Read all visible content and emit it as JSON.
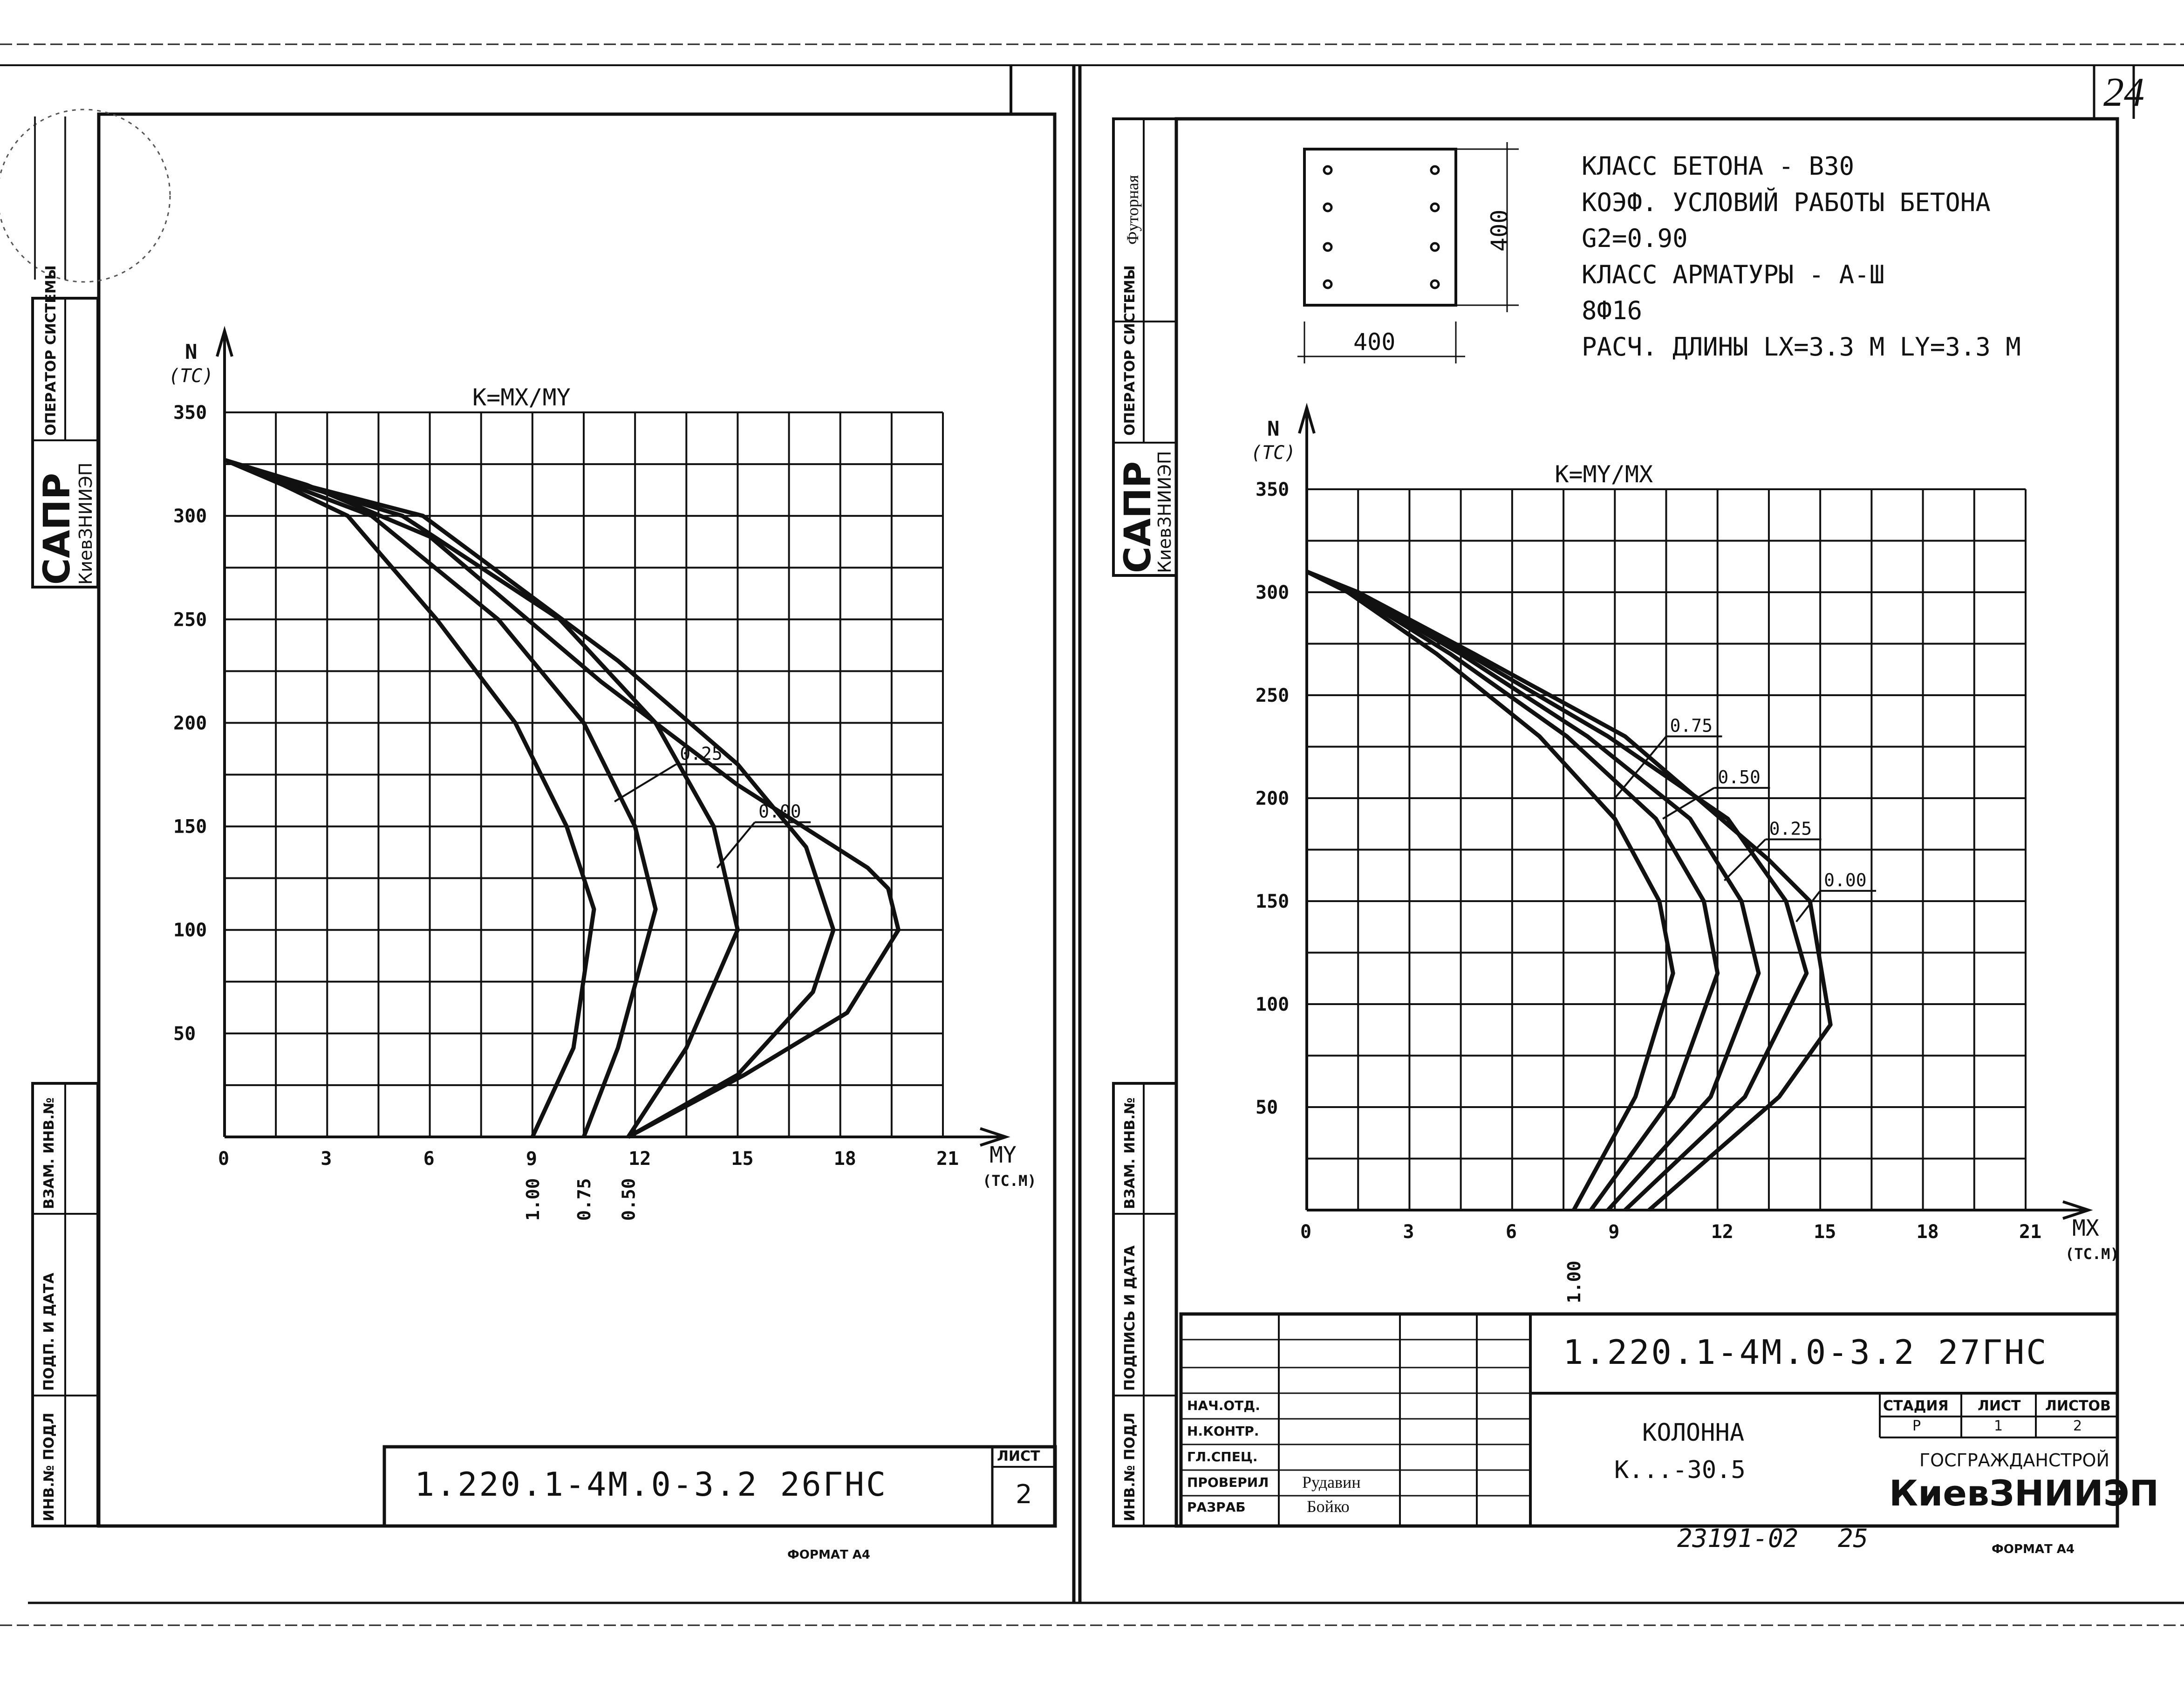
{
  "page_number": "24",
  "sheet_left": {
    "stamp_sapr": "САПР",
    "stamp_org": "КиевЗНИИЭП",
    "side_operator": "ОПЕРАТОР СИСТЕМЫ",
    "side_inv_vzam": "ВЗАМ. ИНВ.№",
    "side_podp": "ПОДП. И ДАТА",
    "side_inv_podl": "ИНВ.№ ПОДЛ",
    "doc_code": "1.220.1-4М.0-3.2 26ГНС",
    "list_label": "ЛИСТ",
    "list_value": "2",
    "format": "ФОРМАТ А4"
  },
  "sheet_right": {
    "stamp_sapr": "САПР",
    "stamp_org": "КиевЗНИИЭП",
    "side_futornaya": "Футорная",
    "side_operator": "ОПЕРАТОР СИСТЕМЫ",
    "side_vzam": "ВЗАМ. ИНВ.№",
    "side_podpis": "ПОДПИСЬ И ДАТА",
    "side_inv_podl": "ИНВ.№ ПОДЛ",
    "section_width": "400",
    "section_height": "400",
    "spec_lines": [
      "КЛАСС БЕТОНА - В30",
      "КОЭФ. УСЛОВИЙ РАБОТЫ БЕТОНА",
      "G2=0.90",
      "КЛАСС АРМАТУРЫ - А-Ш",
      "8Ф16",
      "РАСЧ. ДЛИНЫ  LX=3.3 М  LY=3.3 М"
    ],
    "title_block": {
      "doc_code": "1.220.1-4М.0-3.2 27ГНС",
      "rows": [
        "НАЧ.ОТД.",
        "Н.КОНТР.",
        "ГЛ.СПЕЦ.",
        "ПРОВЕРИЛ",
        "РАЗРАБ"
      ],
      "names": [
        "",
        "",
        "",
        "Рудавин",
        "Бойко"
      ],
      "item_name": "КОЛОННА",
      "item_mark": "К...-30.5",
      "stage_label": "СТАДИЯ",
      "sheet_label": "ЛИСТ",
      "sheets_label": "ЛИСТОВ",
      "stage_value": "Р",
      "sheet_value": "1",
      "sheets_value": "2",
      "org1": "ГОСГРАЖДАНСТРОЙ",
      "org2": "КиевЗНИИЭП"
    },
    "archive_no": "23191-02",
    "archive_page": "25",
    "format": "ФОРМАТ А4"
  },
  "chart_data": [
    {
      "type": "line",
      "title": "K=MX/MY",
      "ylabel_top": "N",
      "ylabel_unit": "(TC)",
      "xlabel": "MY",
      "xlabel_unit": "(TC.M)",
      "xlim": [
        0,
        21
      ],
      "ylim": [
        0,
        350
      ],
      "x_ticks": [
        0,
        3,
        6,
        9,
        12,
        15,
        18,
        21
      ],
      "y_ticks": [
        50,
        100,
        150,
        200,
        250,
        300,
        350
      ],
      "grid": true,
      "series": [
        {
          "name": "1.00",
          "points": [
            [
              9.0,
              0
            ],
            [
              10.2,
              43
            ],
            [
              10.8,
              110
            ],
            [
              10.0,
              150
            ],
            [
              8.5,
              200
            ],
            [
              6.2,
              250
            ],
            [
              3.6,
              300
            ],
            [
              1.7,
              315
            ],
            [
              0,
              327
            ]
          ]
        },
        {
          "name": "0.75",
          "points": [
            [
              10.5,
              0
            ],
            [
              11.5,
              43
            ],
            [
              12.6,
              110
            ],
            [
              12.0,
              150
            ],
            [
              10.5,
              200
            ],
            [
              8.0,
              250
            ],
            [
              4.3,
              300
            ],
            [
              1.9,
              315
            ],
            [
              0,
              327
            ]
          ]
        },
        {
          "name": "0.50",
          "points": [
            [
              11.8,
              0
            ],
            [
              13.5,
              43
            ],
            [
              15.0,
              100
            ],
            [
              14.3,
              150
            ],
            [
              12.6,
              200
            ],
            [
              9.8,
              250
            ],
            [
              5.2,
              300
            ],
            [
              2.2,
              315
            ],
            [
              0,
              327
            ]
          ]
        },
        {
          "name": "0.25",
          "points": [
            [
              11.8,
              0
            ],
            [
              15.0,
              30
            ],
            [
              17.2,
              70
            ],
            [
              17.8,
              100
            ],
            [
              17.0,
              140
            ],
            [
              15.0,
              180
            ],
            [
              11.5,
              230
            ],
            [
              5.8,
              300
            ],
            [
              2.3,
              315
            ],
            [
              0,
              327
            ]
          ]
        },
        {
          "name": "0.00",
          "points": [
            [
              11.8,
              0
            ],
            [
              15.2,
              30
            ],
            [
              18.2,
              60
            ],
            [
              19.7,
              100
            ],
            [
              19.4,
              120
            ],
            [
              18.8,
              130
            ],
            [
              15.0,
              170
            ],
            [
              11.0,
              220
            ],
            [
              6.0,
              290
            ],
            [
              2.4,
              315
            ],
            [
              0,
              327
            ]
          ]
        }
      ],
      "annotations": [
        "0.25",
        "0.00"
      ],
      "axis_labels_rotated": [
        "1.00",
        "0.75",
        "0.50"
      ]
    },
    {
      "type": "line",
      "title": "K=MY/MX",
      "ylabel_top": "N",
      "ylabel_unit": "(TC)",
      "xlabel": "MX",
      "xlabel_unit": "(TC.M)",
      "xlim": [
        0,
        21
      ],
      "ylim": [
        0,
        350
      ],
      "x_ticks": [
        0,
        3,
        6,
        9,
        12,
        15,
        18,
        21
      ],
      "y_ticks": [
        50,
        100,
        150,
        200,
        250,
        300,
        350
      ],
      "grid": true,
      "series": [
        {
          "name": "1.00",
          "points": [
            [
              7.8,
              0
            ],
            [
              9.6,
              55
            ],
            [
              10.7,
              115
            ],
            [
              10.3,
              150
            ],
            [
              9.0,
              190
            ],
            [
              6.8,
              230
            ],
            [
              3.8,
              270
            ],
            [
              1.2,
              300
            ],
            [
              0,
              310
            ]
          ]
        },
        {
          "name": "0.75",
          "points": [
            [
              8.3,
              0
            ],
            [
              10.7,
              55
            ],
            [
              12.0,
              115
            ],
            [
              11.6,
              150
            ],
            [
              10.2,
              190
            ],
            [
              7.6,
              230
            ],
            [
              4.2,
              270
            ],
            [
              1.3,
              300
            ],
            [
              0,
              310
            ]
          ]
        },
        {
          "name": "0.50",
          "points": [
            [
              8.8,
              0
            ],
            [
              11.8,
              55
            ],
            [
              13.2,
              115
            ],
            [
              12.7,
              150
            ],
            [
              11.2,
              190
            ],
            [
              8.2,
              230
            ],
            [
              4.5,
              270
            ],
            [
              1.4,
              300
            ],
            [
              0,
              310
            ]
          ]
        },
        {
          "name": "0.25",
          "points": [
            [
              9.3,
              0
            ],
            [
              12.8,
              55
            ],
            [
              14.6,
              115
            ],
            [
              14.0,
              150
            ],
            [
              12.3,
              190
            ],
            [
              8.8,
              230
            ],
            [
              4.7,
              270
            ],
            [
              1.5,
              300
            ],
            [
              0,
              310
            ]
          ]
        },
        {
          "name": "0.00",
          "points": [
            [
              10.0,
              0
            ],
            [
              13.8,
              55
            ],
            [
              15.3,
              90
            ],
            [
              14.7,
              150
            ],
            [
              13.5,
              170
            ],
            [
              9.3,
              230
            ],
            [
              4.9,
              270
            ],
            [
              1.5,
              300
            ],
            [
              0,
              310
            ]
          ]
        }
      ],
      "annotations": [
        "0.75",
        "0.50",
        "0.25",
        "0.00"
      ],
      "axis_labels_rotated": [
        "1.00"
      ]
    }
  ]
}
